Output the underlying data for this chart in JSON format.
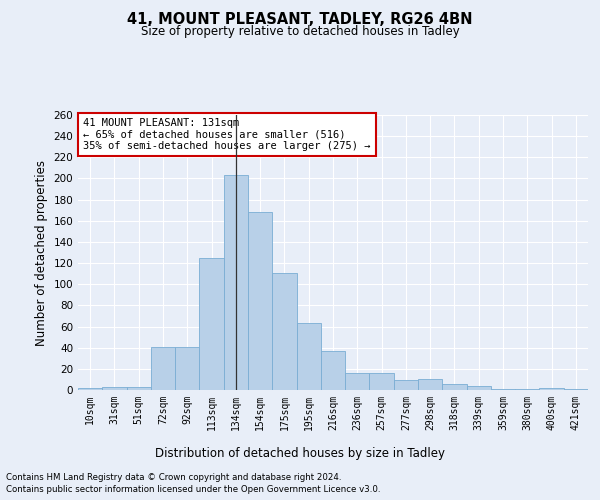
{
  "title1": "41, MOUNT PLEASANT, TADLEY, RG26 4BN",
  "title2": "Size of property relative to detached houses in Tadley",
  "xlabel": "Distribution of detached houses by size in Tadley",
  "ylabel": "Number of detached properties",
  "categories": [
    "10sqm",
    "31sqm",
    "51sqm",
    "72sqm",
    "92sqm",
    "113sqm",
    "134sqm",
    "154sqm",
    "175sqm",
    "195sqm",
    "216sqm",
    "236sqm",
    "257sqm",
    "277sqm",
    "298sqm",
    "318sqm",
    "339sqm",
    "359sqm",
    "380sqm",
    "400sqm",
    "421sqm"
  ],
  "values": [
    2,
    3,
    3,
    41,
    41,
    125,
    203,
    168,
    111,
    63,
    37,
    16,
    16,
    9,
    10,
    6,
    4,
    1,
    1,
    2,
    1
  ],
  "bar_color": "#b8d0e8",
  "bar_edge_color": "#7aadd4",
  "highlight_index": 6,
  "annotation_text": "41 MOUNT PLEASANT: 131sqm\n← 65% of detached houses are smaller (516)\n35% of semi-detached houses are larger (275) →",
  "annotation_box_color": "#ffffff",
  "annotation_box_edge_color": "#cc0000",
  "bg_color": "#e8eef8",
  "plot_bg_color": "#e8eef8",
  "grid_color": "#ffffff",
  "ylim": [
    0,
    260
  ],
  "yticks": [
    0,
    20,
    40,
    60,
    80,
    100,
    120,
    140,
    160,
    180,
    200,
    220,
    240,
    260
  ],
  "footer_line1": "Contains HM Land Registry data © Crown copyright and database right 2024.",
  "footer_line2": "Contains public sector information licensed under the Open Government Licence v3.0."
}
